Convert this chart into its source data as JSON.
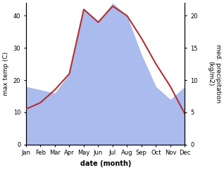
{
  "months": [
    1,
    2,
    3,
    4,
    5,
    6,
    7,
    8,
    9,
    10,
    11,
    12
  ],
  "month_labels": [
    "Jan",
    "Feb",
    "Mar",
    "Apr",
    "May",
    "Jun",
    "Jul",
    "Aug",
    "Sep",
    "Oct",
    "Nov",
    "Dec"
  ],
  "temperature": [
    11,
    13,
    17,
    22,
    42,
    38,
    43,
    40,
    33,
    25,
    18,
    9.5
  ],
  "precipitation": [
    9,
    8.5,
    8,
    11,
    21,
    19,
    22,
    20,
    14,
    9,
    7,
    9
  ],
  "temp_color": "#b03030",
  "precip_color": "#aabbee",
  "ylabel_left": "max temp (C)",
  "ylabel_right": "med. precipitation\n(kg/m2)",
  "xlabel": "date (month)",
  "ylim_left": [
    0,
    44
  ],
  "ylim_right": [
    0,
    22
  ],
  "yticks_left": [
    0,
    10,
    20,
    30,
    40
  ],
  "yticks_right": [
    0,
    5,
    10,
    15,
    20
  ],
  "bg_color": "#ffffff",
  "font_size_ticks": 6,
  "font_size_ylabel": 6.5,
  "font_size_xlabel": 7,
  "line_width": 1.5
}
